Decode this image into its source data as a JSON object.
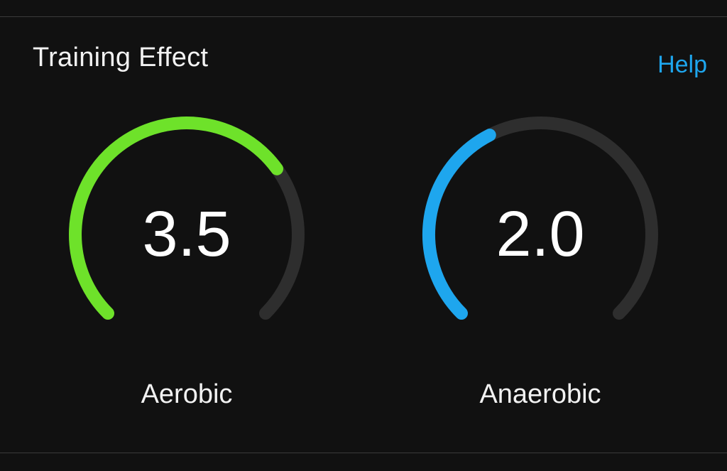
{
  "header": {
    "title": "Training Effect",
    "help_label": "Help"
  },
  "gauges": [
    {
      "name": "Aerobic",
      "value": "3.5",
      "fill_fraction": 0.7,
      "color": "#6ee22a"
    },
    {
      "name": "Anaerobic",
      "value": "2.0",
      "fill_fraction": 0.4,
      "color": "#1ea6ee"
    }
  ],
  "colors": {
    "background": "#111111",
    "track": "#2e2e2e",
    "divider": "#3a3a3a",
    "text": "#f2f2f2",
    "link": "#1ea6ee"
  }
}
